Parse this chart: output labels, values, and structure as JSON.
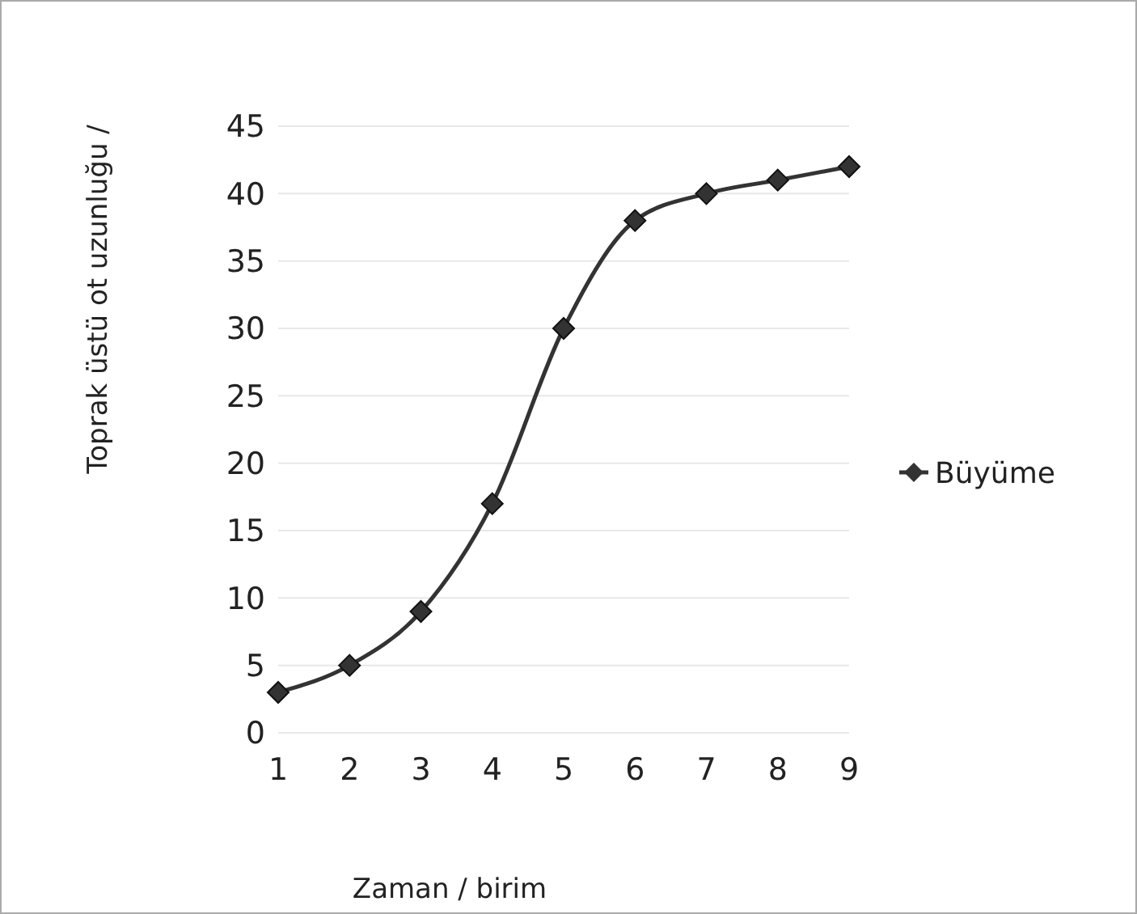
{
  "chart_data": {
    "type": "line",
    "xlabel": "Zaman / birim",
    "ylabel": "Toprak üstü ot uzunluğu /",
    "categories": [
      "1",
      "2",
      "3",
      "4",
      "5",
      "6",
      "7",
      "8",
      "9"
    ],
    "series": [
      {
        "name": "Büyüme",
        "color": "#333333",
        "values": [
          3,
          5,
          9,
          17,
          30,
          38,
          40,
          41,
          42
        ]
      }
    ],
    "ylim": [
      0,
      45
    ],
    "yticks": [
      0,
      5,
      10,
      15,
      20,
      25,
      30,
      35,
      40,
      45
    ],
    "grid": "y",
    "legend": "right",
    "marker": "diamond",
    "line_style": "solid"
  }
}
